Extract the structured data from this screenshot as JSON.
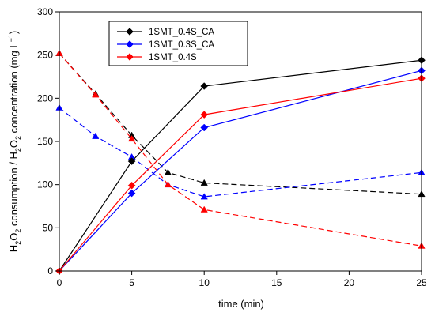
{
  "chart_data": {
    "type": "line",
    "xlabel": "time (min)",
    "ylabel_parts": [
      "H",
      "2",
      "O",
      "2",
      " consumption / H",
      "2",
      "O",
      "2",
      " concentration (mg L",
      "−1",
      ")"
    ],
    "xlim": [
      0,
      25
    ],
    "ylim": [
      0,
      300
    ],
    "x_ticks": [
      0,
      5,
      10,
      15,
      20,
      25
    ],
    "y_ticks": [
      0,
      50,
      100,
      150,
      200,
      250,
      300
    ],
    "grid": false,
    "legend_position": "top-left",
    "series": [
      {
        "name": "1SMT_0.4S_CA",
        "color": "#000000",
        "consumption": {
          "x": [
            0,
            5,
            10,
            25
          ],
          "y": [
            0,
            127,
            214,
            244
          ],
          "marker": "diamond"
        },
        "concentration": {
          "x": [
            0,
            2.5,
            5,
            7.5,
            10,
            25
          ],
          "y": [
            252,
            205,
            157,
            114,
            102,
            89
          ],
          "marker": "triangle"
        }
      },
      {
        "name": "1SMT_0.3S_CA",
        "color": "#0000ff",
        "consumption": {
          "x": [
            0,
            5,
            10,
            25
          ],
          "y": [
            0,
            90,
            166,
            232
          ],
          "marker": "diamond"
        },
        "concentration": {
          "x": [
            0,
            2.5,
            5,
            7.5,
            10,
            25
          ],
          "y": [
            189,
            156,
            132,
            100,
            86,
            114
          ],
          "marker": "triangle"
        }
      },
      {
        "name": "1SMT_0.4S",
        "color": "#ff0000",
        "consumption": {
          "x": [
            0,
            5,
            10,
            25
          ],
          "y": [
            0,
            99,
            181,
            223
          ],
          "marker": "diamond"
        },
        "concentration": {
          "x": [
            0,
            2.5,
            5,
            7.5,
            10,
            25
          ],
          "y": [
            252,
            204,
            153,
            100,
            71,
            29
          ],
          "marker": "triangle"
        }
      }
    ]
  }
}
